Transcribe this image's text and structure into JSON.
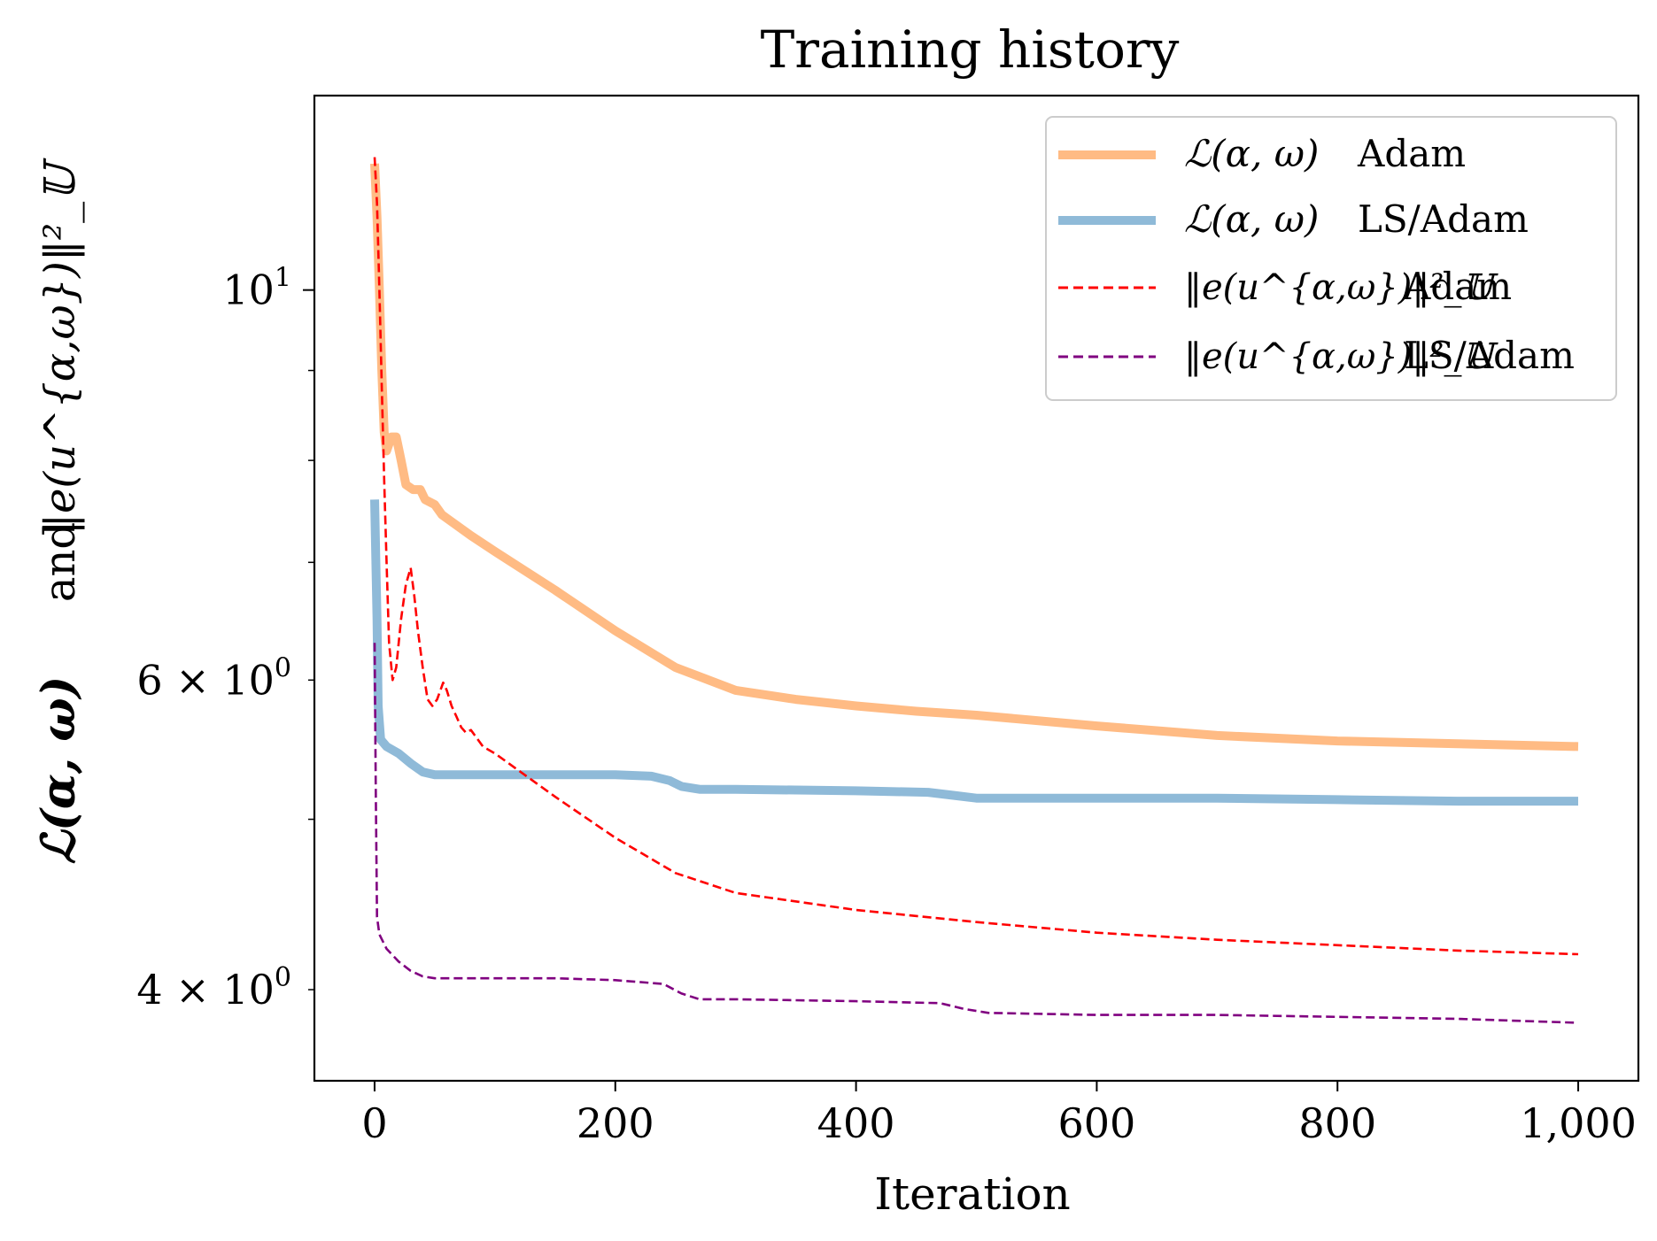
{
  "chart_data": {
    "type": "line",
    "title": "Training history",
    "xlabel": "Iteration",
    "ylabel": {
      "left": "ℒ(α, ω)",
      "middle": "and",
      "right": "‖e(u^{α,ω})‖²_𝕌"
    },
    "xlim": [
      -50,
      1050
    ],
    "ylim": [
      3.55,
      12.9
    ],
    "yscale": "log",
    "grid": false,
    "legend_position": "top-right",
    "x_ticks": [
      0,
      200,
      400,
      600,
      800,
      1000
    ],
    "x_tick_labels": [
      "0",
      "200",
      "400",
      "600",
      "800",
      "1,000"
    ],
    "y_major_ticks": [
      10
    ],
    "y_minor_ticks": [
      4,
      5,
      6,
      7,
      8,
      9
    ],
    "y_tick_labels": [
      {
        "value": 10,
        "base": "10",
        "exp": "1"
      },
      {
        "value": 6,
        "base": "6 × 10",
        "exp": "0"
      },
      {
        "value": 4,
        "base": "4 × 10",
        "exp": "0"
      }
    ],
    "series": [
      {
        "name": "ℒ(α, ω) Adam",
        "color": "#ffbb84",
        "style": "solid-thick",
        "points": [
          [
            0,
            11.8
          ],
          [
            2,
            11.0
          ],
          [
            4,
            10.0
          ],
          [
            6,
            9.0
          ],
          [
            8,
            8.3
          ],
          [
            10,
            8.1
          ],
          [
            14,
            8.25
          ],
          [
            18,
            8.25
          ],
          [
            22,
            8.0
          ],
          [
            26,
            7.75
          ],
          [
            32,
            7.7
          ],
          [
            38,
            7.7
          ],
          [
            42,
            7.6
          ],
          [
            50,
            7.55
          ],
          [
            56,
            7.45
          ],
          [
            80,
            7.25
          ],
          [
            100,
            7.1
          ],
          [
            150,
            6.75
          ],
          [
            200,
            6.4
          ],
          [
            250,
            6.1
          ],
          [
            300,
            5.92
          ],
          [
            350,
            5.85
          ],
          [
            400,
            5.8
          ],
          [
            450,
            5.76
          ],
          [
            500,
            5.73
          ],
          [
            600,
            5.65
          ],
          [
            700,
            5.58
          ],
          [
            800,
            5.54
          ],
          [
            900,
            5.52
          ],
          [
            1000,
            5.5
          ]
        ]
      },
      {
        "name": "ℒ(α, ω) LS/Adam",
        "color": "#8fbad8",
        "style": "solid-thick",
        "points": [
          [
            0,
            7.6
          ],
          [
            2,
            6.5
          ],
          [
            3,
            5.8
          ],
          [
            5,
            5.55
          ],
          [
            10,
            5.5
          ],
          [
            20,
            5.45
          ],
          [
            30,
            5.38
          ],
          [
            40,
            5.32
          ],
          [
            50,
            5.3
          ],
          [
            100,
            5.3
          ],
          [
            150,
            5.3
          ],
          [
            200,
            5.3
          ],
          [
            230,
            5.29
          ],
          [
            245,
            5.26
          ],
          [
            255,
            5.22
          ],
          [
            270,
            5.2
          ],
          [
            300,
            5.2
          ],
          [
            400,
            5.19
          ],
          [
            460,
            5.18
          ],
          [
            480,
            5.16
          ],
          [
            500,
            5.14
          ],
          [
            520,
            5.14
          ],
          [
            600,
            5.14
          ],
          [
            700,
            5.14
          ],
          [
            800,
            5.13
          ],
          [
            900,
            5.12
          ],
          [
            1000,
            5.12
          ]
        ]
      },
      {
        "name": "‖e(u^{α,ω})‖²_𝕌 Adam",
        "color": "#ff0000",
        "style": "dashed",
        "points": [
          [
            0,
            11.9
          ],
          [
            2,
            11.2
          ],
          [
            4,
            10.0
          ],
          [
            6,
            8.8
          ],
          [
            8,
            7.8
          ],
          [
            10,
            7.0
          ],
          [
            12,
            6.3
          ],
          [
            15,
            6.0
          ],
          [
            18,
            6.1
          ],
          [
            22,
            6.5
          ],
          [
            26,
            6.8
          ],
          [
            30,
            6.95
          ],
          [
            33,
            6.7
          ],
          [
            36,
            6.4
          ],
          [
            40,
            6.1
          ],
          [
            44,
            5.85
          ],
          [
            48,
            5.8
          ],
          [
            52,
            5.85
          ],
          [
            57,
            5.98
          ],
          [
            60,
            5.92
          ],
          [
            64,
            5.8
          ],
          [
            68,
            5.72
          ],
          [
            72,
            5.64
          ],
          [
            76,
            5.6
          ],
          [
            80,
            5.62
          ],
          [
            85,
            5.56
          ],
          [
            90,
            5.5
          ],
          [
            100,
            5.45
          ],
          [
            150,
            5.15
          ],
          [
            200,
            4.88
          ],
          [
            250,
            4.66
          ],
          [
            300,
            4.54
          ],
          [
            400,
            4.44
          ],
          [
            500,
            4.37
          ],
          [
            600,
            4.31
          ],
          [
            700,
            4.27
          ],
          [
            800,
            4.24
          ],
          [
            900,
            4.21
          ],
          [
            1000,
            4.19
          ]
        ]
      },
      {
        "name": "‖e(u^{α,ω})‖²_𝕌 LS/Adam",
        "color": "#800080",
        "style": "dashed",
        "points": [
          [
            0,
            6.3
          ],
          [
            1,
            5.2
          ],
          [
            2,
            4.4
          ],
          [
            4,
            4.3
          ],
          [
            10,
            4.22
          ],
          [
            20,
            4.15
          ],
          [
            30,
            4.1
          ],
          [
            40,
            4.07
          ],
          [
            50,
            4.06
          ],
          [
            100,
            4.06
          ],
          [
            150,
            4.06
          ],
          [
            200,
            4.05
          ],
          [
            240,
            4.03
          ],
          [
            255,
            3.98
          ],
          [
            270,
            3.95
          ],
          [
            300,
            3.95
          ],
          [
            400,
            3.94
          ],
          [
            470,
            3.93
          ],
          [
            490,
            3.9
          ],
          [
            510,
            3.88
          ],
          [
            600,
            3.87
          ],
          [
            700,
            3.87
          ],
          [
            800,
            3.86
          ],
          [
            900,
            3.85
          ],
          [
            1000,
            3.83
          ]
        ]
      }
    ]
  },
  "legend": {
    "entries": [
      {
        "math": "ℒ(α, ω)",
        "suffix": "Adam"
      },
      {
        "math": "ℒ(α, ω)",
        "suffix": "LS/Adam"
      },
      {
        "math": "‖e(u^{α,ω})‖²_𝕌",
        "suffix": "Adam"
      },
      {
        "math": "‖e(u^{α,ω})‖²_𝕌",
        "suffix": "LS/Adam"
      }
    ]
  }
}
